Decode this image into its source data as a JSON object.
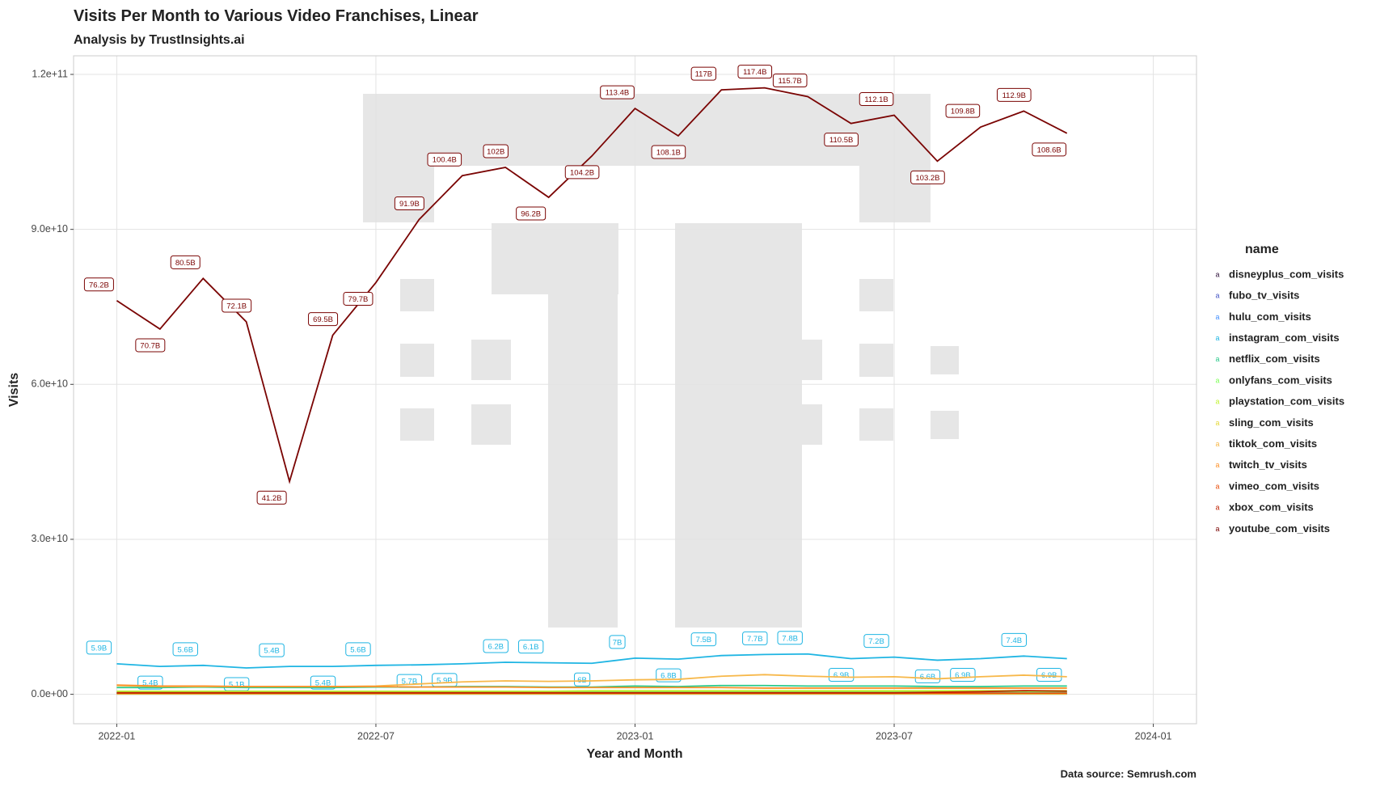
{
  "chart_data": {
    "type": "line",
    "title": "Visits Per Month to Various Video Franchises, Linear",
    "subtitle": "Analysis by TrustInsights.ai",
    "x_label": "Year and Month",
    "y_label": "Visits",
    "caption": "Data source: Semrush.com",
    "legend_title": "name",
    "legend_position": "right",
    "grid": true,
    "x": [
      "2022-01",
      "2022-02",
      "2022-03",
      "2022-04",
      "2022-05",
      "2022-06",
      "2022-07",
      "2022-08",
      "2022-09",
      "2022-10",
      "2022-11",
      "2022-12",
      "2023-01",
      "2023-02",
      "2023-03",
      "2023-04",
      "2023-05",
      "2023-06",
      "2023-07",
      "2023-08",
      "2023-09",
      "2023-10",
      "2023-11"
    ],
    "xlim": [
      "2021-12",
      "2024-02"
    ],
    "xticks": [
      "2022-01",
      "2022-07",
      "2023-01",
      "2023-07",
      "2024-01"
    ],
    "ylim": [
      -5700000000.0,
      123600000000.0
    ],
    "yticks": [
      {
        "value": 0,
        "label": "0.0e+00"
      },
      {
        "value": 30000000000.0,
        "label": "3.0e+10"
      },
      {
        "value": 60000000000.0,
        "label": "6.0e+10"
      },
      {
        "value": 90000000000.0,
        "label": "9.0e+10"
      },
      {
        "value": 120000000000.0,
        "label": "1.2e+11"
      }
    ],
    "series": [
      {
        "name": "disneyplus_com_visits",
        "color": "#30123b",
        "values": [
          200000000.0,
          200000000.0,
          200000000.0,
          200000000.0,
          200000000.0,
          200000000.0,
          200000000.0,
          200000000.0,
          200000000.0,
          200000000.0,
          200000000.0,
          200000000.0,
          200000000.0,
          200000000.0,
          200000000.0,
          200000000.0,
          200000000.0,
          200000000.0,
          200000000.0,
          200000000.0,
          200000000.0,
          200000000.0,
          200000000.0
        ]
      },
      {
        "name": "fubo_tv_visits",
        "color": "#4454c4",
        "values": [
          50000000.0,
          50000000.0,
          50000000.0,
          50000000.0,
          50000000.0,
          50000000.0,
          50000000.0,
          50000000.0,
          50000000.0,
          50000000.0,
          50000000.0,
          50000000.0,
          50000000.0,
          50000000.0,
          50000000.0,
          50000000.0,
          50000000.0,
          50000000.0,
          50000000.0,
          50000000.0,
          50000000.0,
          50000000.0,
          50000000.0
        ]
      },
      {
        "name": "hulu_com_visits",
        "color": "#4490fe",
        "values": [
          400000000.0,
          400000000.0,
          400000000.0,
          400000000.0,
          400000000.0,
          400000000.0,
          400000000.0,
          400000000.0,
          400000000.0,
          400000000.0,
          400000000.0,
          400000000.0,
          400000000.0,
          400000000.0,
          400000000.0,
          400000000.0,
          400000000.0,
          400000000.0,
          400000000.0,
          400000000.0,
          400000000.0,
          400000000.0,
          400000000.0
        ]
      },
      {
        "name": "instagram_com_visits",
        "color": "#1fb5e3",
        "values": [
          5900000000.0,
          5400000000.0,
          5600000000.0,
          5100000000.0,
          5400000000.0,
          5400000000.0,
          5600000000.0,
          5700000000.0,
          5900000000.0,
          6200000000.0,
          6100000000.0,
          6000000000.0,
          7000000000.0,
          6800000000.0,
          7500000000.0,
          7700000000.0,
          7800000000.0,
          6900000000.0,
          7200000000.0,
          6600000000.0,
          6900000000.0,
          7400000000.0,
          6900000000.0
        ],
        "value_labels": [
          "5.9B",
          "5.4B",
          "5.6B",
          "5.1B",
          "5.4B",
          "5.4B",
          "5.6B",
          "5.7B",
          "5.9B",
          "6.2B",
          "6.1B",
          "6B",
          "7B",
          "6.8B",
          "7.5B",
          "7.7B",
          "7.8B",
          "6.9B",
          "7.2B",
          "6.6B",
          "6.9B",
          "7.4B",
          "6.9B"
        ]
      },
      {
        "name": "netflix_com_visits",
        "color": "#29c98a",
        "values": [
          1300000000.0,
          1300000000.0,
          1400000000.0,
          1300000000.0,
          1300000000.0,
          1300000000.0,
          1400000000.0,
          1400000000.0,
          1500000000.0,
          1500000000.0,
          1400000000.0,
          1400000000.0,
          1600000000.0,
          1500000000.0,
          1700000000.0,
          1700000000.0,
          1600000000.0,
          1600000000.0,
          1600000000.0,
          1500000000.0,
          1500000000.0,
          1600000000.0,
          1600000000.0
        ]
      },
      {
        "name": "onlyfans_com_visits",
        "color": "#7dff56",
        "values": [
          400000000.0,
          400000000.0,
          400000000.0,
          400000000.0,
          400000000.0,
          500000000.0,
          500000000.0,
          500000000.0,
          500000000.0,
          500000000.0,
          500000000.0,
          500000000.0,
          500000000.0,
          500000000.0,
          500000000.0,
          500000000.0,
          500000000.0,
          500000000.0,
          500000000.0,
          500000000.0,
          500000000.0,
          500000000.0,
          500000000.0
        ]
      },
      {
        "name": "playstation_com_visits",
        "color": "#c1f334",
        "values": [
          600000000.0,
          600000000.0,
          600000000.0,
          600000000.0,
          600000000.0,
          600000000.0,
          600000000.0,
          600000000.0,
          600000000.0,
          600000000.0,
          600000000.0,
          700000000.0,
          700000000.0,
          700000000.0,
          700000000.0,
          700000000.0,
          700000000.0,
          700000000.0,
          700000000.0,
          700000000.0,
          700000000.0,
          700000000.0,
          700000000.0
        ]
      },
      {
        "name": "sling_com_visits",
        "color": "#e5d83a",
        "values": [
          50000000.0,
          50000000.0,
          50000000.0,
          50000000.0,
          50000000.0,
          50000000.0,
          50000000.0,
          50000000.0,
          50000000.0,
          50000000.0,
          50000000.0,
          50000000.0,
          50000000.0,
          50000000.0,
          50000000.0,
          50000000.0,
          50000000.0,
          50000000.0,
          50000000.0,
          50000000.0,
          50000000.0,
          50000000.0,
          50000000.0
        ]
      },
      {
        "name": "tiktok_com_visits",
        "color": "#f7b84a",
        "values": [
          1700000000.0,
          1500000000.0,
          1500000000.0,
          1500000000.0,
          1500000000.0,
          1500000000.0,
          1600000000.0,
          2000000000.0,
          2400000000.0,
          2600000000.0,
          2500000000.0,
          2600000000.0,
          2800000000.0,
          2900000000.0,
          3500000000.0,
          3800000000.0,
          3500000000.0,
          3300000000.0,
          3400000000.0,
          3000000000.0,
          3400000000.0,
          3700000000.0,
          3400000000.0
        ]
      },
      {
        "name": "twitch_tv_visits",
        "color": "#fe922a",
        "values": [
          1800000000.0,
          1600000000.0,
          1600000000.0,
          1500000000.0,
          1500000000.0,
          1500000000.0,
          1500000000.0,
          1400000000.0,
          1400000000.0,
          1400000000.0,
          1300000000.0,
          1300000000.0,
          1300000000.0,
          1300000000.0,
          1300000000.0,
          1200000000.0,
          1200000000.0,
          1200000000.0,
          1200000000.0,
          1200000000.0,
          1200000000.0,
          1200000000.0,
          1200000000.0
        ]
      },
      {
        "name": "vimeo_com_visits",
        "color": "#ea4f0d",
        "values": [
          200000000.0,
          200000000.0,
          200000000.0,
          200000000.0,
          200000000.0,
          200000000.0,
          200000000.0,
          200000000.0,
          200000000.0,
          200000000.0,
          200000000.0,
          200000000.0,
          200000000.0,
          200000000.0,
          200000000.0,
          200000000.0,
          200000000.0,
          200000000.0,
          200000000.0,
          200000000.0,
          200000000.0,
          200000000.0,
          200000000.0
        ]
      },
      {
        "name": "xbox_com_visits",
        "color": "#be2102",
        "values": [
          300000000.0,
          300000000.0,
          300000000.0,
          300000000.0,
          300000000.0,
          300000000.0,
          300000000.0,
          300000000.0,
          300000000.0,
          300000000.0,
          300000000.0,
          300000000.0,
          300000000.0,
          300000000.0,
          300000000.0,
          300000000.0,
          300000000.0,
          300000000.0,
          300000000.0,
          400000000.0,
          500000000.0,
          700000000.0,
          600000000.0
        ]
      },
      {
        "name": "youtube_com_visits",
        "color": "#7a0403",
        "values": [
          76200000000.0,
          70700000000.0,
          80500000000.0,
          72100000000.0,
          41200000000.0,
          69500000000.0,
          79700000000.0,
          91900000000.0,
          100400000000.0,
          102000000000.0,
          96200000000.0,
          104200000000.0,
          113400000000.0,
          108100000000.0,
          117000000000.0,
          117400000000.0,
          115700000000.0,
          110500000000.0,
          112100000000.0,
          103200000000.0,
          109800000000.0,
          112900000000.0,
          108600000000.0
        ],
        "value_labels": [
          "76.2B",
          "70.7B",
          "80.5B",
          "72.1B",
          "41.2B",
          "69.5B",
          "79.7B",
          "91.9B",
          "100.4B",
          "102B",
          "96.2B",
          "104.2B",
          "113.4B",
          "108.1B",
          "117B",
          "117.4B",
          "115.7B",
          "110.5B",
          "112.1B",
          "103.2B",
          "109.8B",
          "112.9B",
          "108.6B"
        ]
      }
    ]
  }
}
